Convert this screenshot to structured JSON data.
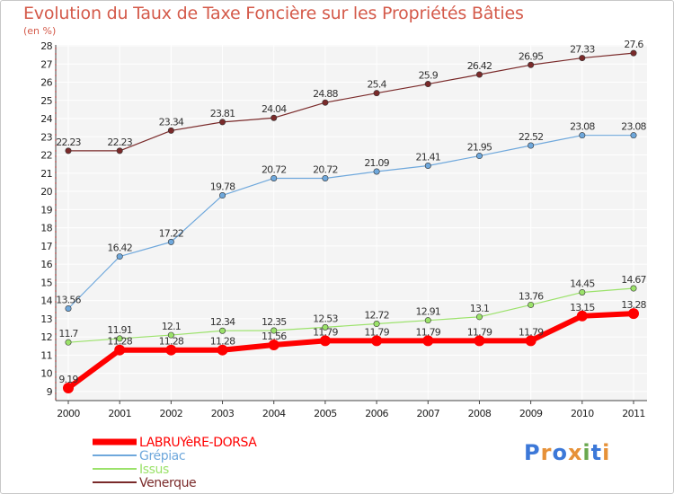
{
  "title": "Evolution du Taux de Taxe Foncière sur les Propriétés Bâties",
  "unit_label": "(en %)",
  "logo_text": "Proxiti",
  "colors": {
    "background": "#f4f4f4",
    "grid": "#ffffff",
    "axis": "#444444",
    "title": "#d45a4a"
  },
  "chart_data": {
    "type": "line",
    "title": "Evolution du Taux de Taxe Foncière sur les Propriétés Bâties",
    "ylabel": "(en %)",
    "xlabel": "",
    "x": [
      "2000",
      "2001",
      "2002",
      "2003",
      "2004",
      "2005",
      "2006",
      "2007",
      "2008",
      "2009",
      "2010",
      "2011"
    ],
    "yticks": [
      9,
      10,
      11,
      12,
      13,
      14,
      15,
      16,
      17,
      18,
      19,
      20,
      21,
      22,
      23,
      24,
      25,
      26,
      27,
      28
    ],
    "ylim": [
      9,
      28
    ],
    "grid": true,
    "legend_position": "bottom-left",
    "series": [
      {
        "name": "LABRUYèRE-DORSA",
        "color": "#ff0000",
        "values": [
          9.19,
          11.28,
          11.28,
          11.28,
          11.56,
          11.79,
          11.79,
          11.79,
          11.79,
          11.79,
          13.15,
          13.28
        ],
        "labels": [
          "9.19",
          "11.28",
          "11.28",
          "11.28",
          "11.56",
          "11.79",
          "11.79",
          "11.79",
          "11.79",
          "11.79",
          "13.15",
          "13.28"
        ]
      },
      {
        "name": "Grépiac",
        "color": "#6fa8dc",
        "values": [
          13.56,
          16.42,
          17.22,
          19.78,
          20.72,
          20.72,
          21.09,
          21.41,
          21.95,
          22.52,
          23.08,
          23.08
        ],
        "labels": [
          "13.56",
          "16.42",
          "17.22",
          "19.78",
          "20.72",
          "20.72",
          "21.09",
          "21.41",
          "21.95",
          "22.52",
          "23.08",
          "23.08"
        ]
      },
      {
        "name": "Issus",
        "color": "#9be26a",
        "values": [
          11.7,
          11.91,
          12.1,
          12.34,
          12.35,
          12.53,
          12.72,
          12.91,
          13.1,
          13.76,
          14.45,
          14.67
        ],
        "labels": [
          "11.7",
          "11.91",
          "12.1",
          "12.34",
          "12.35",
          "12.53",
          "12.72",
          "12.91",
          "13.1",
          "13.76",
          "14.45",
          "14.67"
        ]
      },
      {
        "name": "Venerque",
        "color": "#7a2a2a",
        "values": [
          22.23,
          22.23,
          23.34,
          23.81,
          24.04,
          24.88,
          25.4,
          25.9,
          26.42,
          26.95,
          27.33,
          27.6
        ],
        "labels": [
          "22.23",
          "22.23",
          "23.34",
          "23.81",
          "24.04",
          "24.88",
          "25.4",
          "25.9",
          "26.42",
          "26.95",
          "27.33",
          "27.6"
        ]
      }
    ]
  }
}
